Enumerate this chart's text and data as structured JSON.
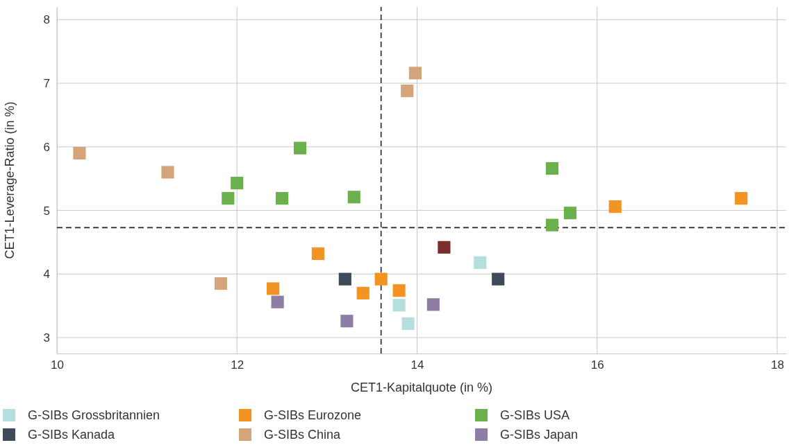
{
  "chart_data": {
    "type": "scatter",
    "xlabel": "CET1-Kapitalquote (in %)",
    "ylabel": "CET1-Leverage-Ratio (in %)",
    "xlim": [
      10,
      18.1
    ],
    "xticks": [
      10,
      12,
      14,
      16,
      18
    ],
    "ylim": [
      2.75,
      8.2
    ],
    "yticks": [
      3,
      4,
      5,
      6,
      7,
      8
    ],
    "grid": true,
    "marker": "square",
    "legend": "bottom",
    "series": [
      {
        "name": "G-SIBs Grossbritannien",
        "color": "#b5dede",
        "x": [
          13.8,
          13.9,
          14.7
        ],
        "values": [
          3.51,
          3.22,
          4.18
        ]
      },
      {
        "name": "G-SIBs Kanada",
        "color": "#3d4b5a",
        "x": [
          13.2,
          14.9
        ],
        "values": [
          3.92,
          3.92
        ]
      },
      {
        "name": "G-SIBs Eurozone",
        "color": "#f39322",
        "x": [
          12.4,
          12.9,
          13.4,
          13.6,
          13.8,
          16.2,
          17.6
        ],
        "values": [
          3.77,
          4.32,
          3.7,
          3.92,
          3.74,
          5.06,
          5.19
        ]
      },
      {
        "name": "G-SIBs China",
        "color": "#d4a57a",
        "x": [
          10.25,
          11.23,
          13.89,
          13.98,
          11.82
        ],
        "values": [
          5.9,
          5.6,
          6.88,
          7.16,
          3.85
        ]
      },
      {
        "name": "G-SIBs USA",
        "color": "#6ab04c",
        "x": [
          11.9,
          12.0,
          12.5,
          12.7,
          13.3,
          15.5,
          15.5,
          15.7
        ],
        "values": [
          5.19,
          5.43,
          5.19,
          5.98,
          5.21,
          5.66,
          4.77,
          4.96
        ]
      },
      {
        "name": "G-SIBs Japan",
        "color": "#8e7ea6",
        "x": [
          12.45,
          13.22,
          14.18
        ],
        "values": [
          3.56,
          3.26,
          3.52
        ]
      },
      {
        "color": "#7b2e2e",
        "x": [
          14.3
        ],
        "values": [
          4.42
        ]
      }
    ],
    "ref_lines": [
      {
        "axis": "x",
        "value": 13.6,
        "line_style": "dashed",
        "color": "#222222"
      },
      {
        "axis": "y",
        "value": 4.73,
        "line_style": "dashed",
        "color": "#222222"
      }
    ]
  }
}
